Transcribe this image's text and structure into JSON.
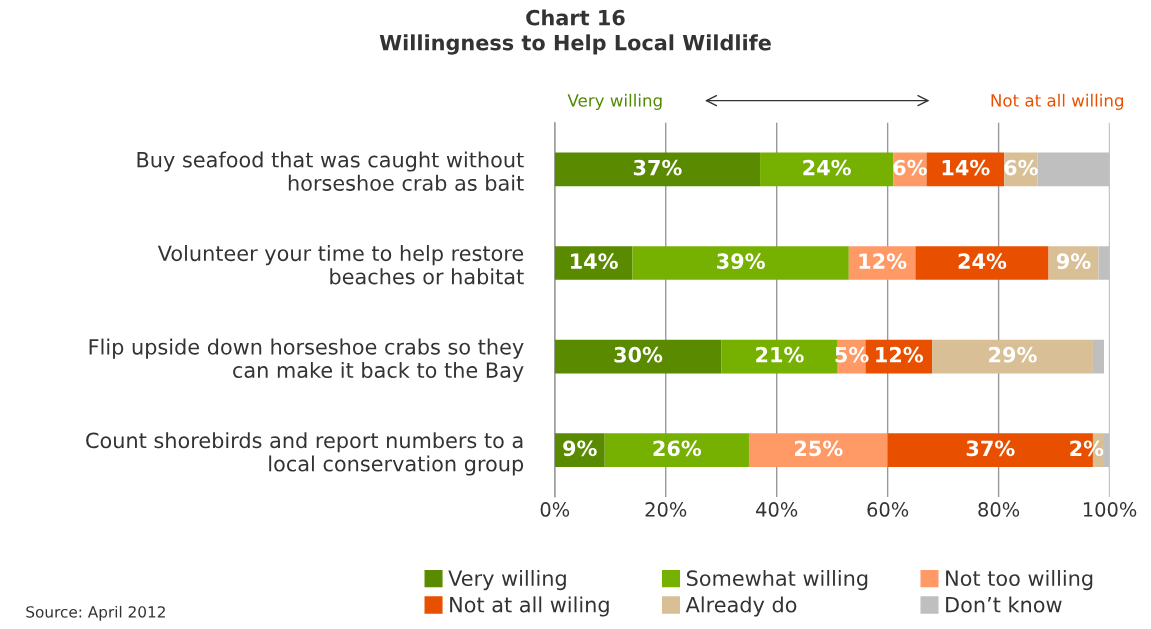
{
  "chart_data": {
    "type": "bar",
    "orientation": "horizontal",
    "stacked": true,
    "title": "Chart 16\nWillingness to Help Local Wildlife",
    "categories": [
      "Buy seafood that was caught without\nhorseshoe crab as bait",
      "Volunteer your time to help restore\nbeaches or habitat",
      "Flip upside down horseshoe crabs so they\ncan make it back to the Bay",
      "Count shorebirds and report numbers to a\nlocal conservation group"
    ],
    "series": [
      {
        "name": "Very willing",
        "color": "#5a8a00",
        "values": [
          37,
          14,
          30,
          9
        ],
        "value_labels": [
          "37%",
          "14%",
          "30%",
          "9%"
        ]
      },
      {
        "name": "Somewhat willing",
        "color": "#76b000",
        "values": [
          24,
          39,
          21,
          26
        ],
        "value_labels": [
          "24%",
          "39%",
          "21%",
          "26%"
        ]
      },
      {
        "name": "Not too willing",
        "color": "#ff9966",
        "values": [
          6,
          12,
          5,
          25
        ],
        "value_labels": [
          "6%",
          "12%",
          "5%",
          "25%"
        ]
      },
      {
        "name": "Not at all wiling",
        "color": "#e85000",
        "values": [
          14,
          24,
          12,
          37
        ],
        "value_labels": [
          "14%",
          "24%",
          "12%",
          "37%"
        ]
      },
      {
        "name": "Already do",
        "color": "#d9bf96",
        "values": [
          6,
          9,
          29,
          2
        ],
        "value_labels": [
          "6%",
          "9%",
          "29%",
          "2%"
        ]
      },
      {
        "name": "Don’t know",
        "color": "#bfbfbf",
        "values": [
          13,
          2,
          2,
          1
        ],
        "value_labels": [
          null,
          null,
          null,
          null
        ]
      }
    ],
    "xlim": [
      0,
      100
    ],
    "xticks": [
      {
        "value": 0,
        "label": "0%"
      },
      {
        "value": 20,
        "label": "20%"
      },
      {
        "value": 40,
        "label": "40%"
      },
      {
        "value": 60,
        "label": "60%"
      },
      {
        "value": 80,
        "label": "80%"
      },
      {
        "value": 100,
        "label": "100%"
      }
    ],
    "grid": "x",
    "legend": "bottom",
    "annotations": [
      "Very willing",
      "Not at all willing",
      "Source: April 2012"
    ]
  }
}
